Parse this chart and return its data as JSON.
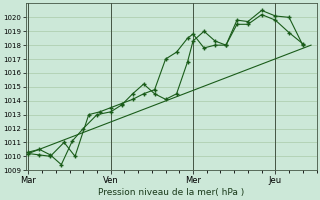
{
  "background_color": "#cce8d8",
  "grid_color": "#aacaaa",
  "line_color": "#1a5c1a",
  "marker_color": "#1a5c1a",
  "xlabel": "Pression niveau de la mer( hPa )",
  "ylim": [
    1009,
    1021
  ],
  "yticks": [
    1009,
    1010,
    1011,
    1012,
    1013,
    1014,
    1015,
    1016,
    1017,
    1018,
    1019,
    1020
  ],
  "xtick_labels": [
    "Mar",
    "Ven",
    "Mer",
    "Jeu"
  ],
  "xtick_positions": [
    0,
    3,
    6,
    9
  ],
  "xlim": [
    -0.1,
    10.5
  ],
  "series1": {
    "x": [
      0.0,
      0.4,
      0.8,
      1.2,
      1.6,
      2.0,
      2.5,
      3.0,
      3.4,
      3.8,
      4.2,
      4.6,
      5.0,
      5.4,
      5.8,
      6.0,
      6.4,
      6.8,
      7.2,
      7.6,
      8.0,
      8.5,
      9.0,
      9.5,
      10.0
    ],
    "y": [
      1010.3,
      1010.5,
      1010.1,
      1009.4,
      1011.1,
      1012.0,
      1013.0,
      1013.2,
      1013.7,
      1014.5,
      1015.2,
      1014.5,
      1014.1,
      1014.5,
      1016.8,
      1018.3,
      1019.0,
      1018.3,
      1018.0,
      1019.8,
      1019.7,
      1020.5,
      1020.1,
      1020.0,
      1018.0
    ]
  },
  "series2": {
    "x": [
      0.0,
      0.4,
      0.8,
      1.3,
      1.7,
      2.2,
      2.6,
      3.0,
      3.4,
      3.8,
      4.2,
      4.6,
      5.0,
      5.4,
      5.8,
      6.0,
      6.4,
      6.8,
      7.2,
      7.6,
      8.0,
      8.5,
      9.0,
      9.5,
      10.0
    ],
    "y": [
      1010.2,
      1010.1,
      1010.0,
      1011.0,
      1010.0,
      1013.0,
      1013.2,
      1013.5,
      1013.8,
      1014.1,
      1014.5,
      1014.8,
      1017.0,
      1017.5,
      1018.5,
      1018.8,
      1017.8,
      1018.0,
      1018.0,
      1019.5,
      1019.5,
      1020.2,
      1019.8,
      1018.9,
      1018.1
    ]
  },
  "series3_straight": {
    "x": [
      0.0,
      10.3
    ],
    "y": [
      1010.2,
      1018.0
    ]
  },
  "vlines": [
    0,
    3,
    6,
    9
  ]
}
